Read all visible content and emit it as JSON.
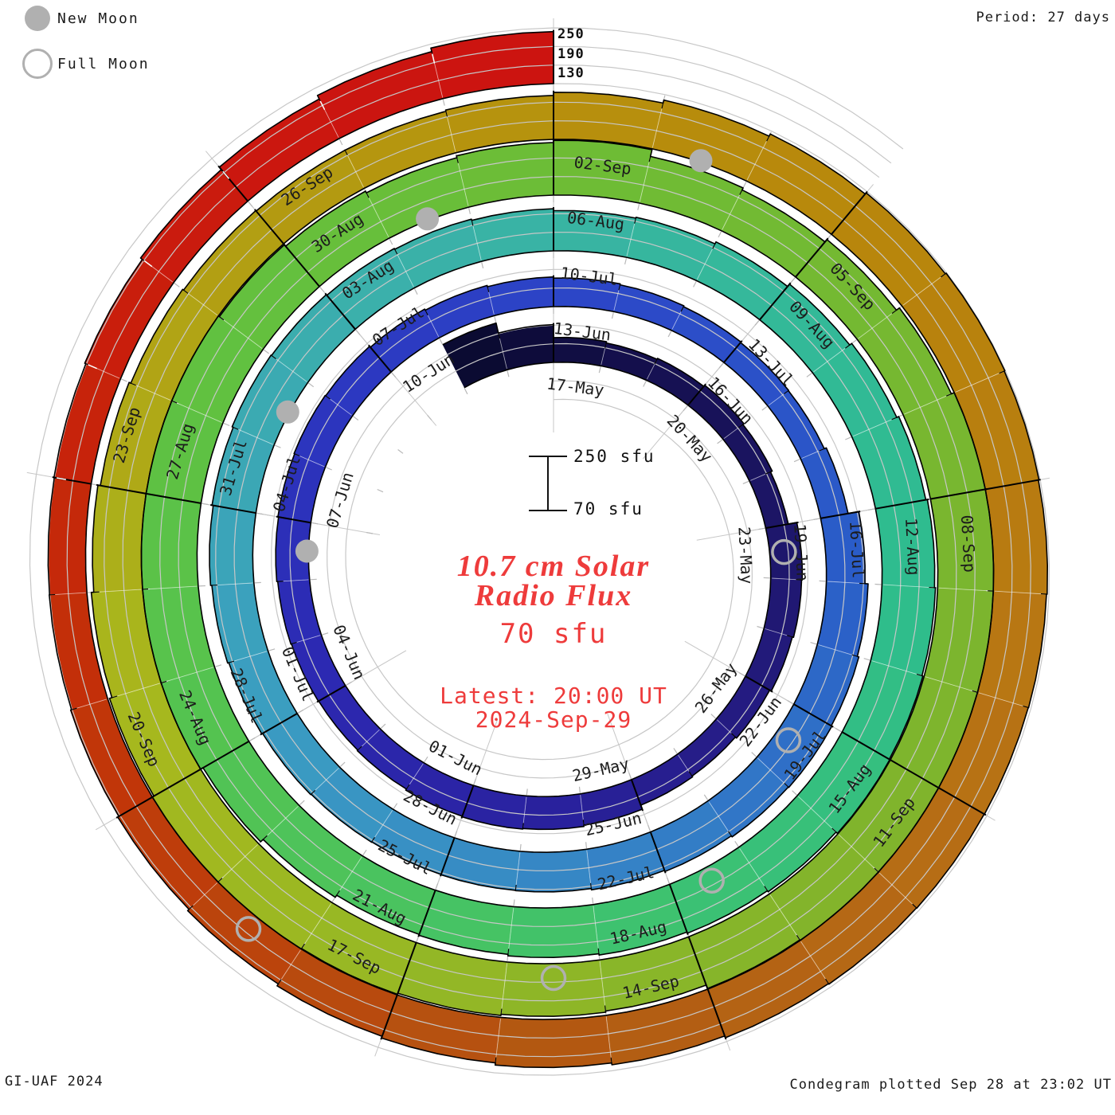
{
  "header": {
    "period_label": "Period: 27 days"
  },
  "legend": {
    "new_moon": "New Moon",
    "full_moon": "Full Moon"
  },
  "radial_axis": {
    "t250": "250",
    "t190": "190",
    "t130": "130"
  },
  "scalebar": {
    "top": "250 sfu",
    "bottom": "70 sfu"
  },
  "center": {
    "title1": "10.7 cm Solar",
    "title2": "Radio Flux",
    "value": "70 sfu",
    "latest1": "Latest: 20:00 UT",
    "latest2": "2024-Sep-29"
  },
  "footer": {
    "left": "GI-UAF 2024",
    "right": "Condegram plotted Sep 28 at 23:02 UT"
  },
  "colors": {
    "accent_red": "#ee3b3b",
    "moon_gray": "#b0b0b0",
    "grid_gray": "#c7c7c7",
    "tick_gray": "#b8b8b8",
    "label_black": "#1c1c1c"
  },
  "chart_data": {
    "type": "bar",
    "subtype": "condegram-spiral",
    "title": "10.7 cm Solar Radio Flux",
    "period_days": 27,
    "flux_range_sfu": [
      70,
      250
    ],
    "radial_gridlines_sfu": [
      130,
      190,
      250
    ],
    "start_date": "2024-05-15",
    "end_date": "2024-09-28",
    "dates": [
      "15-May",
      "16-May",
      "17-May",
      "18-May",
      "19-May",
      "20-May",
      "21-May",
      "22-May",
      "23-May",
      "24-May",
      "25-May",
      "26-May",
      "27-May",
      "28-May",
      "29-May",
      "30-May",
      "31-May",
      "01-Jun",
      "02-Jun",
      "03-Jun",
      "04-Jun",
      "05-Jun",
      "06-Jun",
      "07-Jun",
      "08-Jun",
      "09-Jun",
      "10-Jun",
      "11-Jun",
      "12-Jun",
      "13-Jun",
      "14-Jun",
      "15-Jun",
      "16-Jun",
      "17-Jun",
      "18-Jun",
      "19-Jun",
      "20-Jun",
      "21-Jun",
      "22-Jun",
      "23-Jun",
      "24-Jun",
      "25-Jun",
      "26-Jun",
      "27-Jun",
      "28-Jun",
      "29-Jun",
      "30-Jun",
      "01-Jul",
      "02-Jul",
      "03-Jul",
      "04-Jul",
      "05-Jul",
      "06-Jul",
      "07-Jul",
      "08-Jul",
      "09-Jul",
      "10-Jul",
      "11-Jul",
      "12-Jul",
      "13-Jul",
      "14-Jul",
      "15-Jul",
      "16-Jul",
      "17-Jul",
      "18-Jul",
      "19-Jul",
      "20-Jul",
      "21-Jul",
      "22-Jul",
      "23-Jul",
      "24-Jul",
      "25-Jul",
      "26-Jul",
      "27-Jul",
      "28-Jul",
      "29-Jul",
      "30-Jul",
      "31-Jul",
      "01-Aug",
      "02-Aug",
      "03-Aug",
      "04-Aug",
      "05-Aug",
      "06-Aug",
      "07-Aug",
      "08-Aug",
      "09-Aug",
      "10-Aug",
      "11-Aug",
      "12-Aug",
      "13-Aug",
      "14-Aug",
      "15-Aug",
      "16-Aug",
      "17-Aug",
      "18-Aug",
      "19-Aug",
      "20-Aug",
      "21-Aug",
      "22-Aug",
      "23-Aug",
      "24-Aug",
      "25-Aug",
      "26-Aug",
      "27-Aug",
      "28-Aug",
      "29-Aug",
      "30-Aug",
      "31-Aug",
      "01-Sep",
      "02-Sep",
      "03-Sep",
      "04-Sep",
      "05-Sep",
      "06-Sep",
      "07-Sep",
      "08-Sep",
      "09-Sep",
      "10-Sep",
      "11-Sep",
      "12-Sep",
      "13-Sep",
      "14-Sep",
      "15-Sep",
      "16-Sep",
      "17-Sep",
      "18-Sep",
      "19-Sep",
      "20-Sep",
      "21-Sep",
      "22-Sep",
      "23-Sep",
      "24-Sep",
      "25-Sep",
      "26-Sep",
      "27-Sep",
      "28-Sep"
    ],
    "values_sfu": [
      225,
      192,
      150,
      146,
      149,
      154,
      150,
      144,
      172,
      170,
      166,
      160,
      155,
      158,
      172,
      176,
      178,
      176,
      172,
      170,
      171,
      173,
      176,
      178,
      180,
      178,
      174,
      170,
      166,
      162,
      159,
      156,
      154,
      153,
      160,
      195,
      205,
      210,
      212,
      210,
      206,
      202,
      198,
      197,
      196,
      197,
      199,
      202,
      206,
      210,
      214,
      218,
      216,
      213,
      210,
      206,
      200,
      203,
      210,
      220,
      228,
      235,
      240,
      243,
      246,
      248,
      242,
      238,
      234,
      230,
      225,
      222,
      230,
      241,
      250,
      250,
      250,
      250,
      250,
      246,
      240,
      234,
      240,
      247,
      225,
      218,
      228,
      240,
      250,
      250,
      250,
      250,
      250,
      250,
      248,
      236,
      240,
      244,
      248,
      250,
      250,
      244,
      236,
      228,
      220,
      214,
      210,
      208,
      208,
      212,
      222,
      232,
      240,
      245,
      248,
      246,
      244,
      242,
      241,
      240,
      239,
      237,
      231,
      225,
      218,
      212,
      205,
      199,
      195,
      192,
      191,
      192,
      196,
      203,
      213,
      226,
      238
    ],
    "tick_labels": [
      "17-May",
      "20-May",
      "23-May",
      "26-May",
      "29-May",
      "01-Jun",
      "04-Jun",
      "07-Jun",
      "10-Jun",
      "13-Jun",
      "16-Jun",
      "19-Jun",
      "22-Jun",
      "25-Jun",
      "28-Jun",
      "01-Jul",
      "04-Jul",
      "07-Jul",
      "10-Jul",
      "13-Jul",
      "16-Jul",
      "19-Jul",
      "22-Jul",
      "25-Jul",
      "28-Jul",
      "31-Jul",
      "03-Aug",
      "06-Aug",
      "09-Aug",
      "12-Aug",
      "15-Aug",
      "18-Aug",
      "21-Aug",
      "24-Aug",
      "27-Aug",
      "30-Aug",
      "02-Sep",
      "05-Sep",
      "08-Sep",
      "11-Sep",
      "14-Sep",
      "17-Sep",
      "20-Sep",
      "23-Sep",
      "26-Sep"
    ],
    "moons": {
      "new": [
        "06-Jun",
        "05-Jul",
        "04-Aug",
        "03-Sep"
      ],
      "full": [
        "23-May",
        "22-Jun",
        "21-Jul",
        "19-Aug",
        "18-Sep"
      ]
    },
    "colormap_anchors": [
      [
        -2,
        "#0a0a2e"
      ],
      [
        2,
        "#151050"
      ],
      [
        6,
        "#1d1668"
      ],
      [
        10,
        "#251c85"
      ],
      [
        14,
        "#2a22a0"
      ],
      [
        18,
        "#2c28b0"
      ],
      [
        23,
        "#2c36c0"
      ],
      [
        28,
        "#2c48c8"
      ],
      [
        34,
        "#2a5ec8"
      ],
      [
        39,
        "#3480c6"
      ],
      [
        45,
        "#3b9cc2"
      ],
      [
        51,
        "#3bafac"
      ],
      [
        55,
        "#37b5a0"
      ],
      [
        58,
        "#32ba96"
      ],
      [
        61,
        "#2ebc8e"
      ],
      [
        64,
        "#36c07c"
      ],
      [
        67,
        "#40c26c"
      ],
      [
        70,
        "#4cc35c"
      ],
      [
        73,
        "#56c34e"
      ],
      [
        76,
        "#60c141"
      ],
      [
        79,
        "#68be3a"
      ],
      [
        82,
        "#6fbb34"
      ],
      [
        85,
        "#75b831"
      ],
      [
        88,
        "#7bb52e"
      ],
      [
        91,
        "#81b42b"
      ],
      [
        94,
        "#8bb628"
      ],
      [
        97,
        "#9ab823"
      ],
      [
        100,
        "#a8b81d"
      ],
      [
        103,
        "#b0a616"
      ],
      [
        106,
        "#b49810"
      ],
      [
        109,
        "#b78d0c"
      ],
      [
        112,
        "#b8840c"
      ],
      [
        115,
        "#b87912"
      ],
      [
        118,
        "#b56b16"
      ],
      [
        121,
        "#b25b12"
      ],
      [
        124,
        "#b9470d"
      ],
      [
        127,
        "#c23208"
      ],
      [
        130,
        "#c8200b"
      ],
      [
        133,
        "#cb1510"
      ],
      [
        136,
        "#cc1210"
      ]
    ]
  }
}
